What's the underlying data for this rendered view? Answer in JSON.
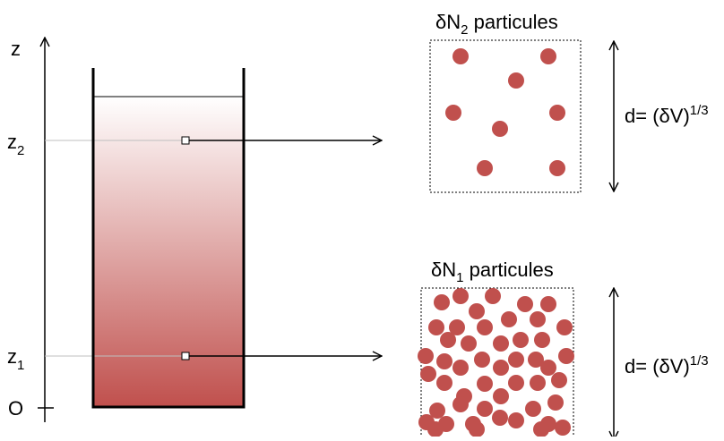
{
  "axis": {
    "label_z": "z",
    "label_origin": "O"
  },
  "levels": [
    {
      "base": "z",
      "sub": "2"
    },
    {
      "base": "z",
      "sub": "1"
    }
  ],
  "boxes": [
    {
      "prefix": "δN",
      "sub": "2",
      "suffix": " particules",
      "particle_count": 8
    },
    {
      "prefix": "δN",
      "sub": "1",
      "suffix": " particules",
      "particle_count": 49
    }
  ],
  "dimension": {
    "text": "d= (δV)",
    "exponent": "1/3"
  },
  "colors": {
    "particle": "#c0504d",
    "gradient_top": "#ffffff",
    "gradient_bottom": "#c0504d",
    "line": "#000000",
    "guide": "#bfbfbf"
  }
}
